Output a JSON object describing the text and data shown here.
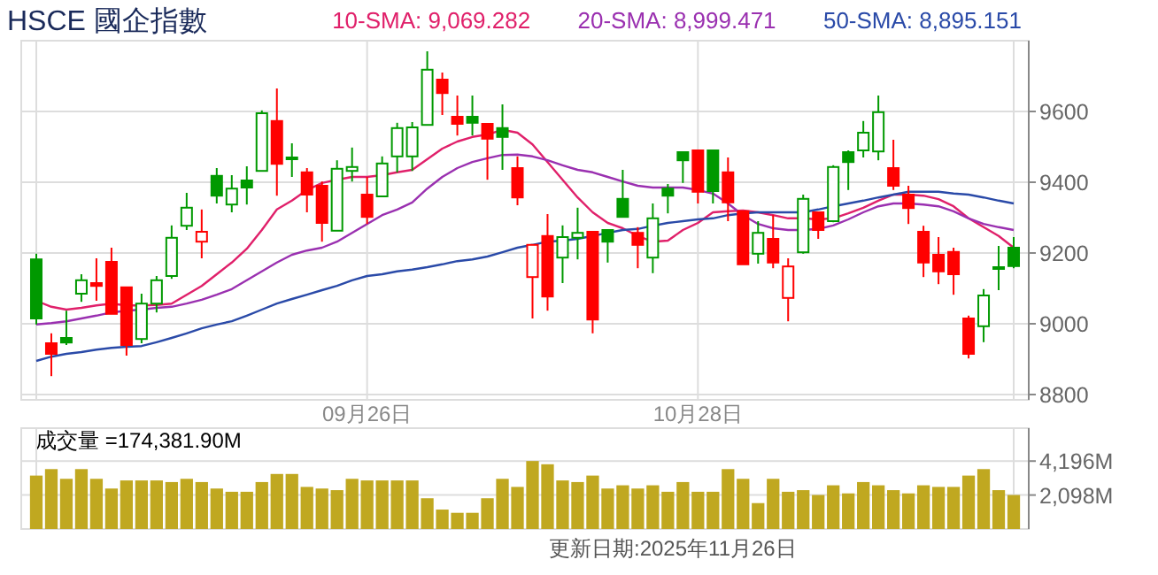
{
  "chart_data": [
    {
      "type": "candlestick",
      "title": "HSCE 國企指數",
      "categories": [
        null,
        null,
        null,
        null,
        null,
        null,
        null,
        null,
        null,
        null,
        null,
        null,
        null,
        null,
        null,
        null,
        null,
        null,
        null,
        null,
        null,
        null,
        "09月26日",
        null,
        null,
        null,
        null,
        null,
        null,
        null,
        null,
        null,
        null,
        null,
        null,
        null,
        null,
        null,
        null,
        null,
        null,
        null,
        null,
        null,
        "10月28日",
        null,
        null,
        null,
        null,
        null,
        null,
        null,
        null,
        null,
        null,
        null,
        null,
        null,
        null,
        null,
        null,
        null,
        null,
        null,
        null,
        null
      ],
      "ohlc": [
        [
          9182,
          9198,
          8998,
          9015
        ],
        [
          8945,
          8973,
          8852,
          8915
        ],
        [
          8960,
          9037,
          8940,
          8947
        ],
        [
          9085,
          9140,
          9062,
          9123
        ],
        [
          9115,
          9185,
          9065,
          9107
        ],
        [
          9175,
          9215,
          9028,
          9028
        ],
        [
          9103,
          9103,
          8910,
          8940
        ],
        [
          8957,
          9085,
          8945,
          9057
        ],
        [
          9057,
          9135,
          9032,
          9123
        ],
        [
          9135,
          9278,
          9127,
          9243
        ],
        [
          9277,
          9370,
          9265,
          9328
        ],
        [
          9232,
          9323,
          9185,
          9260
        ],
        [
          9418,
          9440,
          9340,
          9362
        ],
        [
          9337,
          9420,
          9315,
          9382
        ],
        [
          9405,
          9445,
          9337,
          9385
        ],
        [
          9432,
          9603,
          9432,
          9595
        ],
        [
          9573,
          9665,
          9362,
          9452
        ],
        [
          9468,
          9510,
          9415,
          9470
        ],
        [
          9428,
          9440,
          9315,
          9365
        ],
        [
          9390,
          9402,
          9232,
          9285
        ],
        [
          9263,
          9462,
          9263,
          9438
        ],
        [
          9432,
          9498,
          9402,
          9443
        ],
        [
          9365,
          9415,
          9282,
          9302
        ],
        [
          9360,
          9473,
          9360,
          9453
        ],
        [
          9473,
          9568,
          9428,
          9553
        ],
        [
          9473,
          9570,
          9432,
          9555
        ],
        [
          9562,
          9770,
          9562,
          9718
        ],
        [
          9690,
          9710,
          9590,
          9652
        ],
        [
          9585,
          9645,
          9532,
          9565
        ],
        [
          9585,
          9645,
          9532,
          9568
        ],
        [
          9565,
          9565,
          9407,
          9523
        ],
        [
          9553,
          9620,
          9435,
          9528
        ],
        [
          9440,
          9473,
          9335,
          9357
        ],
        [
          9132,
          9223,
          9015,
          9223
        ],
        [
          9248,
          9310,
          9037,
          9077
        ],
        [
          9187,
          9278,
          9115,
          9245
        ],
        [
          9243,
          9328,
          9182,
          9257
        ],
        [
          9260,
          9260,
          8973,
          9012
        ],
        [
          9265,
          9265,
          9173,
          9232
        ],
        [
          9353,
          9435,
          9302,
          9302
        ],
        [
          9257,
          9273,
          9157,
          9223
        ],
        [
          9187,
          9340,
          9143,
          9298
        ],
        [
          9382,
          9395,
          9312,
          9362
        ],
        [
          9485,
          9485,
          9398,
          9462
        ],
        [
          9490,
          9490,
          9340,
          9373
        ],
        [
          9490,
          9490,
          9340,
          9375
        ],
        [
          9428,
          9470,
          9290,
          9343
        ],
        [
          9318,
          9318,
          9168,
          9168
        ],
        [
          9198,
          9290,
          9170,
          9257
        ],
        [
          9240,
          9307,
          9157,
          9173
        ],
        [
          9073,
          9185,
          9007,
          9162
        ],
        [
          9202,
          9365,
          9198,
          9353
        ],
        [
          9315,
          9315,
          9240,
          9265
        ],
        [
          9290,
          9448,
          9287,
          9443
        ],
        [
          9485,
          9490,
          9378,
          9457
        ],
        [
          9490,
          9573,
          9470,
          9540
        ],
        [
          9487,
          9645,
          9462,
          9598
        ],
        [
          9440,
          9520,
          9378,
          9390
        ],
        [
          9365,
          9390,
          9282,
          9327
        ],
        [
          9260,
          9277,
          9132,
          9173
        ],
        [
          9195,
          9245,
          9112,
          9148
        ],
        [
          9203,
          9215,
          9082,
          9140
        ],
        [
          9015,
          9023,
          8902,
          8915
        ],
        [
          8993,
          9098,
          8948,
          9080
        ],
        [
          9158,
          9220,
          9095,
          9160
        ],
        [
          9215,
          9245,
          9157,
          9163
        ]
      ],
      "colors": [
        "#009900",
        "#ff0000",
        "#009900",
        "#009900",
        "#ff0000",
        "#ff0000",
        "#ff0000",
        "#009900",
        "#009900",
        "#009900",
        "#009900",
        "#ff0000",
        "#009900",
        "#009900",
        "#009900",
        "#009900",
        "#ff0000",
        "#009900",
        "#ff0000",
        "#ff0000",
        "#009900",
        "#009900",
        "#ff0000",
        "#009900",
        "#009900",
        "#009900",
        "#009900",
        "#ff0000",
        "#ff0000",
        "#009900",
        "#ff0000",
        "#009900",
        "#ff0000",
        "#ff0000",
        "#ff0000",
        "#009900",
        "#009900",
        "#ff0000",
        "#009900",
        "#009900",
        "#ff0000",
        "#009900",
        "#009900",
        "#009900",
        "#ff0000",
        "#009900",
        "#ff0000",
        "#ff0000",
        "#009900",
        "#ff0000",
        "#ff0000",
        "#009900",
        "#ff0000",
        "#009900",
        "#009900",
        "#009900",
        "#009900",
        "#ff0000",
        "#ff0000",
        "#ff0000",
        "#ff0000",
        "#ff0000",
        "#ff0000",
        "#009900",
        "#009900",
        "#009900"
      ],
      "series": [
        {
          "type": "line",
          "name": "10-SMA: 9,069.282",
          "color": "#e0206a",
          "values": [
            9065,
            9048,
            9040,
            9045,
            9052,
            9057,
            9052,
            9052,
            9053,
            9057,
            9082,
            9107,
            9140,
            9173,
            9212,
            9265,
            9323,
            9348,
            9378,
            9398,
            9407,
            9415,
            9415,
            9420,
            9428,
            9435,
            9465,
            9495,
            9515,
            9528,
            9535,
            9548,
            9540,
            9507,
            9457,
            9407,
            9357,
            9315,
            9285,
            9270,
            9248,
            9232,
            9235,
            9265,
            9285,
            9315,
            9318,
            9320,
            9315,
            9307,
            9298,
            9298,
            9295,
            9298,
            9312,
            9328,
            9348,
            9365,
            9365,
            9362,
            9352,
            9332,
            9298,
            9273,
            9248,
            9215
          ]
        },
        {
          "type": "line",
          "name": "20-SMA: 8,999.471",
          "color": "#9a30b0",
          "values": [
            8998,
            9002,
            9007,
            9015,
            9023,
            9032,
            9037,
            9040,
            9045,
            9048,
            9057,
            9068,
            9082,
            9098,
            9123,
            9148,
            9173,
            9195,
            9207,
            9215,
            9232,
            9257,
            9282,
            9307,
            9323,
            9343,
            9382,
            9415,
            9440,
            9457,
            9468,
            9477,
            9478,
            9473,
            9462,
            9448,
            9435,
            9428,
            9415,
            9402,
            9390,
            9385,
            9385,
            9385,
            9378,
            9368,
            9340,
            9307,
            9282,
            9270,
            9265,
            9265,
            9268,
            9278,
            9295,
            9315,
            9332,
            9340,
            9340,
            9337,
            9332,
            9318,
            9298,
            9282,
            9273,
            9265
          ]
        },
        {
          "type": "line",
          "name": "50-SMA: 8,895.151",
          "color": "#2a4aa8",
          "values": [
            8895,
            8907,
            8915,
            8920,
            8927,
            8932,
            8935,
            8937,
            8948,
            8960,
            8973,
            8987,
            8998,
            9007,
            9023,
            9040,
            9057,
            9070,
            9082,
            9095,
            9107,
            9123,
            9135,
            9140,
            9148,
            9153,
            9160,
            9168,
            9177,
            9182,
            9190,
            9202,
            9215,
            9223,
            9232,
            9235,
            9240,
            9248,
            9257,
            9265,
            9268,
            9277,
            9285,
            9290,
            9295,
            9298,
            9307,
            9312,
            9315,
            9315,
            9315,
            9315,
            9323,
            9332,
            9340,
            9348,
            9357,
            9365,
            9373,
            9373,
            9373,
            9368,
            9365,
            9357,
            9348,
            9340
          ]
        }
      ],
      "ylim": [
        8785,
        9800
      ],
      "yticks": [
        8800,
        9000,
        9200,
        9400,
        9600
      ],
      "grid": true,
      "legend": "top"
    },
    {
      "type": "bar",
      "title": "成交量 =174,381.90M",
      "categories": [
        null,
        null,
        null,
        null,
        null,
        null,
        null,
        null,
        null,
        null,
        null,
        null,
        null,
        null,
        null,
        null,
        null,
        null,
        null,
        null,
        null,
        null,
        null,
        null,
        null,
        null,
        null,
        null,
        null,
        null,
        null,
        null,
        null,
        null,
        null,
        null,
        null,
        null,
        null,
        null,
        null,
        null,
        null,
        null,
        null,
        null,
        null,
        null,
        null,
        null,
        null,
        null,
        null,
        null,
        null,
        null,
        null,
        null,
        null,
        null,
        null,
        null,
        null,
        null,
        null,
        null
      ],
      "values": [
        3300,
        3700,
        3100,
        3700,
        3100,
        2500,
        3000,
        3000,
        3000,
        2900,
        3100,
        2900,
        2500,
        2300,
        2300,
        2900,
        3400,
        3400,
        2600,
        2500,
        2400,
        3100,
        3000,
        3000,
        3000,
        3000,
        1900,
        1200,
        1000,
        1000,
        1900,
        3100,
        2600,
        4200,
        4000,
        3000,
        2900,
        3300,
        2500,
        2700,
        2500,
        2700,
        2300,
        2900,
        2300,
        2300,
        3700,
        3100,
        1600,
        3100,
        2300,
        2400,
        2100,
        2700,
        2200,
        2900,
        2700,
        2400,
        2200,
        2700,
        2600,
        2600,
        3300,
        3700,
        2400,
        2100
      ],
      "color": "#c0a820",
      "ylim": [
        0,
        6230
      ],
      "yticks": [
        {
          "value": 2098,
          "label": "2,098M"
        },
        {
          "value": 4196,
          "label": "4,196M"
        }
      ],
      "grid": true,
      "tick_labels": "y",
      "annotations": [
        "更新日期:2025年11月26日"
      ]
    }
  ]
}
